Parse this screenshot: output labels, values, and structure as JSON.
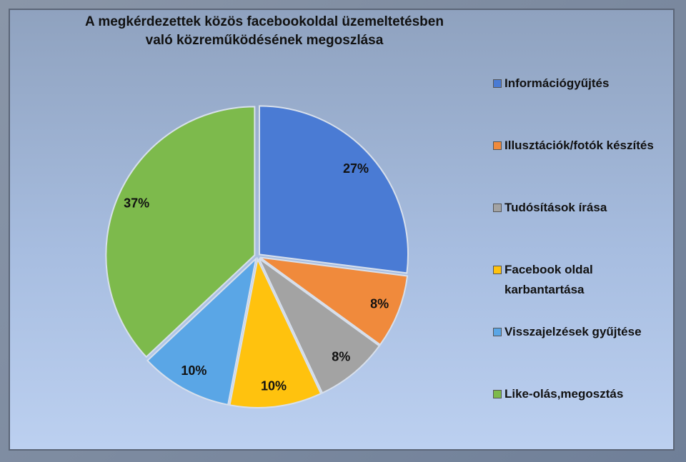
{
  "chart_data": {
    "type": "pie",
    "title": "A megkérdezettek közös facebookoldal üzemeltetésben való közreműködésének megoszlása",
    "categories": [
      "Információgyűjtés",
      "Illusztációk/fotók készítés",
      "Tudósítások írása",
      "Facebook oldal karbantartása",
      "Visszajelzések gyűjtése",
      "Like-olás,megosztás"
    ],
    "values": [
      27,
      8,
      8,
      10,
      10,
      37
    ],
    "value_labels": [
      "27%",
      "8%",
      "8%",
      "10%",
      "10%",
      "37%"
    ],
    "colors": [
      "#4a7bd4",
      "#f08a3c",
      "#a3a3a3",
      "#ffc20e",
      "#5aa6e6",
      "#7dba4c"
    ],
    "legend": "right"
  }
}
